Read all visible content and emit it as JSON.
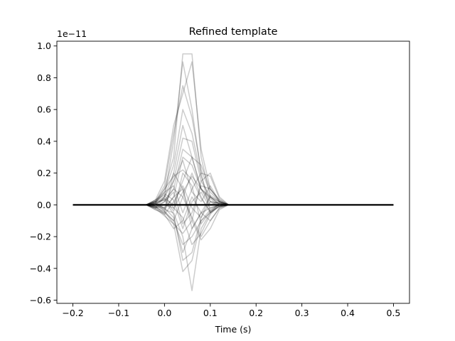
{
  "chart_data": {
    "type": "line",
    "title": "Refined template",
    "xlabel": "Time (s)",
    "ylabel": "",
    "y_scale_label": "1e−11",
    "xlim": [
      -0.235,
      0.535
    ],
    "ylim": [
      -0.62,
      1.03
    ],
    "xticks": [
      -0.2,
      -0.1,
      0.0,
      0.1,
      0.2,
      0.3,
      0.4,
      0.5
    ],
    "xtick_labels": [
      "−0.2",
      "−0.1",
      "0.0",
      "0.1",
      "0.2",
      "0.3",
      "0.4",
      "0.5"
    ],
    "yticks": [
      -0.6,
      -0.4,
      -0.2,
      0.0,
      0.2,
      0.4,
      0.6,
      0.8,
      1.0
    ],
    "ytick_labels": [
      "−0.6",
      "−0.4",
      "−0.2",
      "0.0",
      "0.2",
      "0.4",
      "0.6",
      "0.8",
      "1.0"
    ],
    "grid": false,
    "legend": "none",
    "line_color": "#000000",
    "line_opacity": 0.2,
    "baseline": {
      "x": [
        -0.2,
        0.5
      ],
      "y": [
        0.0,
        0.0
      ]
    },
    "series": [
      {
        "x": [
          -0.2,
          -0.04,
          -0.02,
          0.0,
          0.02,
          0.04,
          0.06,
          0.08,
          0.1,
          0.12,
          0.14,
          0.5
        ],
        "y": [
          0,
          0,
          0.02,
          0.1,
          0.3,
          0.95,
          0.95,
          0.3,
          0.05,
          0.02,
          0,
          0
        ]
      },
      {
        "x": [
          -0.2,
          -0.04,
          -0.02,
          0.0,
          0.02,
          0.04,
          0.06,
          0.08,
          0.1,
          0.12,
          0.14,
          0.5
        ],
        "y": [
          0,
          0,
          -0.02,
          0.05,
          0.4,
          0.9,
          0.6,
          0.2,
          -0.05,
          0.01,
          0,
          0
        ]
      },
      {
        "x": [
          -0.2,
          -0.04,
          -0.02,
          0.0,
          0.02,
          0.04,
          0.06,
          0.08,
          0.1,
          0.12,
          0.14,
          0.5
        ],
        "y": [
          0,
          0,
          0.03,
          0.15,
          0.5,
          0.7,
          0.9,
          0.35,
          0.1,
          0.03,
          0,
          0
        ]
      },
      {
        "x": [
          -0.2,
          -0.04,
          -0.02,
          0.0,
          0.02,
          0.04,
          0.06,
          0.08,
          0.1,
          0.12,
          0.14,
          0.5
        ],
        "y": [
          0,
          0,
          0.01,
          0.08,
          0.25,
          0.6,
          0.45,
          0.18,
          0.02,
          -0.01,
          0,
          0
        ]
      },
      {
        "x": [
          -0.2,
          -0.04,
          -0.02,
          0.0,
          0.02,
          0.04,
          0.06,
          0.08,
          0.1,
          0.12,
          0.14,
          0.5
        ],
        "y": [
          0,
          0,
          -0.03,
          -0.05,
          0.2,
          0.5,
          0.3,
          0.1,
          0.0,
          0.02,
          0,
          0
        ]
      },
      {
        "x": [
          -0.2,
          -0.04,
          -0.02,
          0.0,
          0.02,
          0.04,
          0.06,
          0.08,
          0.1,
          0.12,
          0.14,
          0.5
        ],
        "y": [
          0,
          0,
          0.02,
          0.12,
          0.45,
          0.75,
          0.55,
          0.22,
          0.08,
          0.02,
          0,
          0
        ]
      },
      {
        "x": [
          -0.2,
          -0.04,
          -0.02,
          0.0,
          0.02,
          0.04,
          0.06,
          0.08,
          0.1,
          0.12,
          0.14,
          0.5
        ],
        "y": [
          0,
          0,
          0.0,
          0.05,
          0.15,
          0.42,
          0.4,
          0.15,
          0.05,
          0.0,
          0,
          0
        ]
      },
      {
        "x": [
          -0.2,
          -0.04,
          -0.02,
          0.0,
          0.02,
          0.04,
          0.06,
          0.08,
          0.1,
          0.12,
          0.14,
          0.5
        ],
        "y": [
          0,
          0,
          0.01,
          0.03,
          0.1,
          0.35,
          0.3,
          0.25,
          0.1,
          0.02,
          0,
          0
        ]
      },
      {
        "x": [
          -0.2,
          -0.04,
          -0.02,
          0.0,
          0.02,
          0.04,
          0.06,
          0.08,
          0.1,
          0.12,
          0.14,
          0.5
        ],
        "y": [
          0,
          0,
          -0.01,
          -0.02,
          0.05,
          0.3,
          0.25,
          0.1,
          0.05,
          0.01,
          0,
          0
        ]
      },
      {
        "x": [
          -0.2,
          -0.04,
          -0.02,
          0.0,
          0.02,
          0.04,
          0.06,
          0.08,
          0.1,
          0.12,
          0.14,
          0.5
        ],
        "y": [
          0,
          0,
          0.02,
          0.05,
          0.2,
          0.1,
          -0.1,
          0.15,
          0.2,
          0.05,
          0,
          0
        ]
      },
      {
        "x": [
          -0.2,
          -0.04,
          -0.02,
          0.0,
          0.02,
          0.04,
          0.06,
          0.08,
          0.1,
          0.12,
          0.14,
          0.5
        ],
        "y": [
          0,
          0,
          -0.02,
          -0.04,
          -0.1,
          0.05,
          0.2,
          0.05,
          -0.05,
          0.0,
          0,
          0
        ]
      },
      {
        "x": [
          -0.2,
          -0.04,
          -0.02,
          0.0,
          0.02,
          0.04,
          0.06,
          0.08,
          0.1,
          0.12,
          0.14,
          0.5
        ],
        "y": [
          0,
          0,
          0.03,
          0.08,
          0.12,
          -0.05,
          0.1,
          0.2,
          0.18,
          0.04,
          0,
          0
        ]
      },
      {
        "x": [
          -0.2,
          -0.04,
          -0.02,
          0.0,
          0.02,
          0.04,
          0.06,
          0.08,
          0.1,
          0.12,
          0.14,
          0.5
        ],
        "y": [
          0,
          0,
          -0.01,
          -0.06,
          -0.15,
          -0.1,
          0.05,
          -0.05,
          -0.1,
          -0.02,
          0,
          0
        ]
      },
      {
        "x": [
          -0.2,
          -0.04,
          -0.02,
          0.0,
          0.02,
          0.04,
          0.06,
          0.08,
          0.1,
          0.12,
          0.14,
          0.5
        ],
        "y": [
          0,
          0,
          0.01,
          0.04,
          0.0,
          0.15,
          0.3,
          0.1,
          0.02,
          0.01,
          0,
          0
        ]
      },
      {
        "x": [
          -0.2,
          -0.04,
          -0.02,
          0.0,
          0.02,
          0.04,
          0.06,
          0.08,
          0.1,
          0.12,
          0.14,
          0.5
        ],
        "y": [
          0,
          0,
          -0.02,
          0.02,
          0.08,
          -0.12,
          -0.05,
          0.12,
          0.1,
          0.03,
          0,
          0
        ]
      },
      {
        "x": [
          -0.2,
          -0.04,
          -0.02,
          0.0,
          0.02,
          0.04,
          0.06,
          0.08,
          0.1,
          0.12,
          0.14,
          0.5
        ],
        "y": [
          0,
          0,
          0.02,
          -0.03,
          0.05,
          0.1,
          -0.15,
          -0.05,
          0.05,
          0.0,
          0,
          0
        ]
      },
      {
        "x": [
          -0.2,
          -0.04,
          -0.02,
          0.0,
          0.02,
          0.04,
          0.06,
          0.08,
          0.1,
          0.12,
          0.14,
          0.5
        ],
        "y": [
          0,
          0,
          -0.01,
          -0.05,
          -0.1,
          -0.25,
          -0.2,
          -0.1,
          -0.05,
          -0.01,
          0,
          0
        ]
      },
      {
        "x": [
          -0.2,
          -0.04,
          -0.02,
          0.0,
          0.02,
          0.04,
          0.06,
          0.08,
          0.1,
          0.12,
          0.14,
          0.5
        ],
        "y": [
          0,
          0,
          0.0,
          -0.02,
          -0.08,
          -0.3,
          -0.15,
          -0.05,
          -0.02,
          0.0,
          0,
          0
        ]
      },
      {
        "x": [
          -0.2,
          -0.04,
          -0.02,
          0.0,
          0.02,
          0.04,
          0.06,
          0.08,
          0.1,
          0.12,
          0.14,
          0.5
        ],
        "y": [
          0,
          0,
          0.01,
          -0.04,
          -0.12,
          -0.42,
          -0.35,
          -0.1,
          -0.03,
          0.0,
          0,
          0
        ]
      },
      {
        "x": [
          -0.2,
          -0.04,
          -0.02,
          0.0,
          0.02,
          0.04,
          0.06,
          0.08,
          0.1,
          0.12,
          0.14,
          0.5
        ],
        "y": [
          0,
          0,
          -0.01,
          -0.03,
          -0.05,
          -0.2,
          -0.54,
          -0.15,
          -0.05,
          -0.01,
          0,
          0
        ]
      },
      {
        "x": [
          -0.2,
          -0.04,
          -0.02,
          0.0,
          0.02,
          0.04,
          0.06,
          0.08,
          0.1,
          0.12,
          0.14,
          0.5
        ],
        "y": [
          0,
          0,
          0.02,
          0.03,
          -0.06,
          -0.35,
          -0.3,
          -0.08,
          0.02,
          0.01,
          0,
          0
        ]
      },
      {
        "x": [
          -0.2,
          -0.04,
          -0.02,
          0.0,
          0.02,
          0.04,
          0.06,
          0.08,
          0.1,
          0.12,
          0.14,
          0.5
        ],
        "y": [
          0,
          0,
          -0.02,
          -0.07,
          -0.12,
          -0.18,
          -0.1,
          -0.22,
          -0.15,
          -0.03,
          0,
          0
        ]
      },
      {
        "x": [
          -0.2,
          -0.04,
          -0.02,
          0.0,
          0.02,
          0.04,
          0.06,
          0.08,
          0.1,
          0.12,
          0.14,
          0.5
        ],
        "y": [
          0,
          0,
          0.03,
          0.06,
          -0.02,
          -0.08,
          -0.25,
          -0.18,
          -0.06,
          0.0,
          0,
          0
        ]
      },
      {
        "x": [
          -0.2,
          -0.04,
          -0.02,
          0.0,
          0.02,
          0.04,
          0.06,
          0.08,
          0.1,
          0.12,
          0.14,
          0.5
        ],
        "y": [
          0,
          0,
          -0.01,
          0.02,
          0.1,
          0.05,
          -0.08,
          -0.2,
          -0.1,
          -0.02,
          0,
          0
        ]
      },
      {
        "x": [
          -0.2,
          -0.04,
          -0.02,
          0.0,
          0.02,
          0.04,
          0.06,
          0.08,
          0.1,
          0.12,
          0.14,
          0.5
        ],
        "y": [
          0,
          0,
          0.0,
          0.04,
          -0.04,
          0.2,
          0.12,
          -0.12,
          -0.04,
          0.01,
          0,
          0
        ]
      },
      {
        "x": [
          -0.2,
          -0.04,
          -0.02,
          0.0,
          0.02,
          0.04,
          0.06,
          0.08,
          0.1,
          0.12,
          0.14,
          0.5
        ],
        "y": [
          0,
          0,
          0.01,
          -0.02,
          0.15,
          0.28,
          0.08,
          0.02,
          0.12,
          0.02,
          0,
          0
        ]
      },
      {
        "x": [
          -0.2,
          -0.04,
          -0.02,
          0.0,
          0.02,
          0.04,
          0.06,
          0.08,
          0.1,
          0.12,
          0.14,
          0.5
        ],
        "y": [
          0,
          0,
          -0.02,
          0.0,
          -0.02,
          0.08,
          0.18,
          0.1,
          0.04,
          -0.01,
          0,
          0
        ]
      },
      {
        "x": [
          -0.2,
          -0.04,
          -0.02,
          0.0,
          0.02,
          0.04,
          0.06,
          0.08,
          0.1,
          0.12,
          0.14,
          0.5
        ],
        "y": [
          0,
          0,
          0.02,
          0.07,
          0.03,
          -0.15,
          0.02,
          0.08,
          -0.02,
          0.0,
          0,
          0
        ]
      },
      {
        "x": [
          -0.2,
          -0.04,
          -0.02,
          0.0,
          0.02,
          0.04,
          0.06,
          0.08,
          0.1,
          0.12,
          0.14,
          0.5
        ],
        "y": [
          0,
          0,
          -0.03,
          -0.06,
          0.02,
          0.12,
          -0.02,
          -0.08,
          0.06,
          0.02,
          0,
          0
        ]
      },
      {
        "x": [
          -0.2,
          -0.04,
          -0.02,
          0.0,
          0.02,
          0.04,
          0.06,
          0.08,
          0.1,
          0.12,
          0.14,
          0.5
        ],
        "y": [
          0,
          0,
          0.01,
          0.1,
          0.18,
          0.22,
          0.16,
          0.04,
          -0.04,
          -0.01,
          0,
          0
        ]
      }
    ]
  }
}
